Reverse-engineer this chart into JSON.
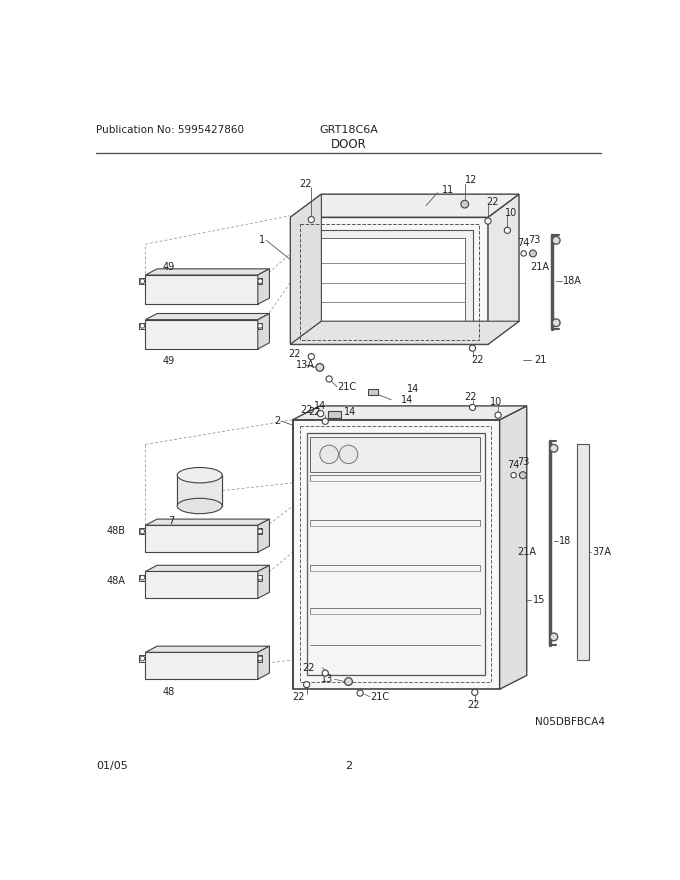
{
  "title_left": "Publication No: 5995427860",
  "title_center": "GRT18C6A",
  "subtitle": "DOOR",
  "footer_left": "01/05",
  "footer_center": "2",
  "watermark": "N05DBFBCA4",
  "bg_color": "#ffffff"
}
